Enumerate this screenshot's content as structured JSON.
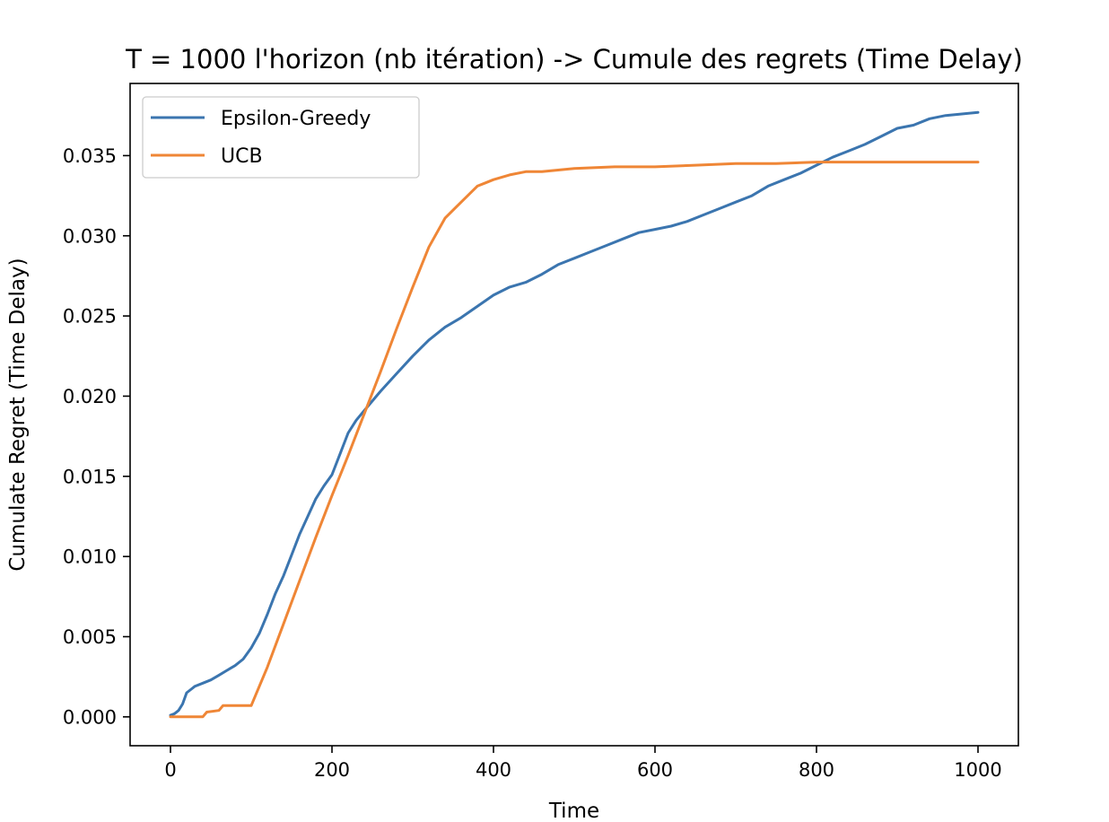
{
  "chart_data": {
    "type": "line",
    "title": "T = 1000 l'horizon (nb itération) -> Cumule des regrets (Time Delay)",
    "xlabel": "Time",
    "ylabel": "Cumulate Regret (Time Delay)",
    "xlim": [
      -50,
      1050
    ],
    "ylim": [
      -0.0018,
      0.0395
    ],
    "xticks": [
      0,
      200,
      400,
      600,
      800,
      1000
    ],
    "xtick_labels": [
      "0",
      "200",
      "400",
      "600",
      "800",
      "1000"
    ],
    "yticks": [
      0.0,
      0.005,
      0.01,
      0.015,
      0.02,
      0.025,
      0.03,
      0.035
    ],
    "ytick_labels": [
      "0.000",
      "0.005",
      "0.010",
      "0.015",
      "0.020",
      "0.025",
      "0.030",
      "0.035"
    ],
    "grid": false,
    "legend_position": "upper-left",
    "series": [
      {
        "name": "Epsilon-Greedy",
        "color": "#3b75af",
        "x": [
          0,
          5,
          10,
          15,
          20,
          25,
          30,
          40,
          50,
          60,
          70,
          80,
          90,
          100,
          110,
          120,
          130,
          140,
          150,
          160,
          170,
          180,
          190,
          200,
          210,
          220,
          230,
          240,
          260,
          280,
          300,
          320,
          340,
          360,
          380,
          400,
          420,
          440,
          460,
          480,
          500,
          520,
          540,
          560,
          580,
          600,
          620,
          640,
          660,
          680,
          700,
          720,
          740,
          760,
          780,
          800,
          820,
          840,
          860,
          880,
          900,
          920,
          940,
          960,
          980,
          1000
        ],
        "y": [
          0.0001,
          0.0002,
          0.0004,
          0.0008,
          0.0015,
          0.0017,
          0.0019,
          0.0021,
          0.0023,
          0.0026,
          0.0029,
          0.0032,
          0.0036,
          0.0043,
          0.0052,
          0.0064,
          0.0077,
          0.0088,
          0.0101,
          0.0114,
          0.0125,
          0.0136,
          0.0144,
          0.0151,
          0.0164,
          0.0177,
          0.0185,
          0.0191,
          0.0203,
          0.0214,
          0.0225,
          0.0235,
          0.0243,
          0.0249,
          0.0256,
          0.0263,
          0.0268,
          0.0271,
          0.0276,
          0.0282,
          0.0286,
          0.029,
          0.0294,
          0.0298,
          0.0302,
          0.0304,
          0.0306,
          0.0309,
          0.0313,
          0.0317,
          0.0321,
          0.0325,
          0.0331,
          0.0335,
          0.0339,
          0.0344,
          0.0349,
          0.0353,
          0.0357,
          0.0362,
          0.0367,
          0.0369,
          0.0373,
          0.0375,
          0.0376,
          0.0377
        ]
      },
      {
        "name": "UCB",
        "color": "#ef8636",
        "x": [
          0,
          40,
          45,
          60,
          65,
          100,
          120,
          140,
          160,
          180,
          200,
          220,
          240,
          260,
          280,
          300,
          320,
          340,
          360,
          380,
          390,
          400,
          420,
          440,
          460,
          480,
          500,
          550,
          600,
          650,
          700,
          750,
          800,
          850,
          900,
          950,
          1000
        ],
        "y": [
          0.0,
          0.0,
          0.0003,
          0.0004,
          0.0007,
          0.0007,
          0.0031,
          0.0058,
          0.0085,
          0.0112,
          0.0138,
          0.0163,
          0.0189,
          0.0215,
          0.0242,
          0.0268,
          0.0293,
          0.0311,
          0.0321,
          0.0331,
          0.0333,
          0.0335,
          0.0338,
          0.034,
          0.034,
          0.0341,
          0.0342,
          0.0343,
          0.0343,
          0.0344,
          0.0345,
          0.0345,
          0.0346,
          0.0346,
          0.0346,
          0.0346,
          0.0346
        ]
      }
    ]
  }
}
